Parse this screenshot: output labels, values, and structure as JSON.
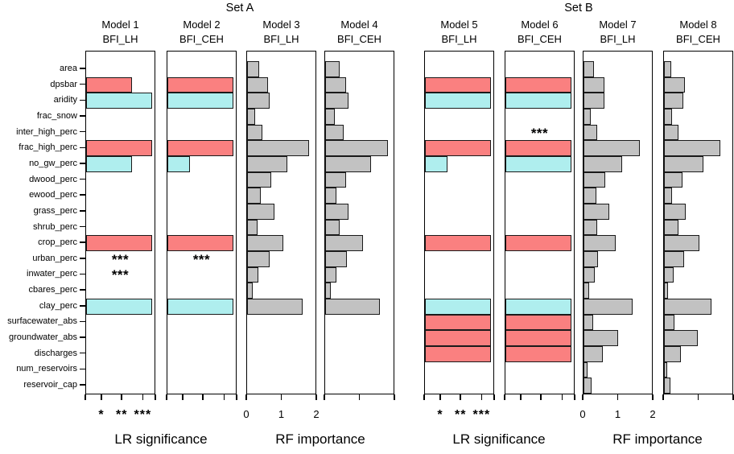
{
  "set_titles": {
    "a": "Set A",
    "b": "Set B"
  },
  "colors": {
    "red": "#FA8080",
    "cyan": "#AFEEEE",
    "gray": "#C2C2C2"
  },
  "chart_data": {
    "type": "bar",
    "orientation": "horizontal",
    "grid": false,
    "row_labels": [
      "area",
      "dpsbar",
      "aridity",
      "frac_snow",
      "inter_high_perc",
      "frac_high_perc",
      "no_gw_perc",
      "dwood_perc",
      "ewood_perc",
      "grass_perc",
      "shrub_perc",
      "crop_perc",
      "urban_perc",
      "inwater_perc",
      "cbares_perc",
      "clay_perc",
      "surfacewater_abs",
      "groundwater_abs",
      "discharges",
      "num_reservoirs",
      "reservoir_cap"
    ],
    "lr_axis": {
      "caption": "LR significance",
      "tick_labels": [
        "*",
        "**",
        "***"
      ]
    },
    "rf_axis": {
      "caption": "RF importance",
      "tick_labels": [
        "0",
        "1",
        "2"
      ],
      "range": [
        0,
        2
      ]
    },
    "panels": [
      {
        "model": "Model 1",
        "variant": "BFI_LH",
        "set": "A",
        "kind": "lr",
        "axis_labels": true,
        "bars": [
          {
            "row": "dpsbar",
            "frac": 0.68,
            "color": "red"
          },
          {
            "row": "aridity",
            "frac": 0.98,
            "color": "cyan"
          },
          {
            "row": "frac_high_perc",
            "frac": 0.98,
            "color": "red"
          },
          {
            "row": "no_gw_perc",
            "frac": 0.68,
            "color": "cyan"
          },
          {
            "row": "crop_perc",
            "frac": 0.98,
            "color": "red"
          },
          {
            "row": "clay_perc",
            "frac": 0.98,
            "color": "cyan"
          }
        ],
        "stars": [
          {
            "row": "urban_perc",
            "text": "***"
          },
          {
            "row": "inwater_perc",
            "text": "***"
          }
        ]
      },
      {
        "model": "Model 2",
        "variant": "BFI_CEH",
        "set": "A",
        "kind": "lr",
        "axis_labels": false,
        "bars": [
          {
            "row": "dpsbar",
            "frac": 0.98,
            "color": "red"
          },
          {
            "row": "aridity",
            "frac": 0.98,
            "color": "cyan"
          },
          {
            "row": "frac_high_perc",
            "frac": 0.98,
            "color": "red"
          },
          {
            "row": "no_gw_perc",
            "frac": 0.33,
            "color": "cyan"
          },
          {
            "row": "crop_perc",
            "frac": 0.98,
            "color": "red"
          },
          {
            "row": "clay_perc",
            "frac": 0.98,
            "color": "cyan"
          }
        ],
        "stars": [
          {
            "row": "urban_perc",
            "text": "***"
          }
        ]
      },
      {
        "model": "Model 3",
        "variant": "BFI_LH",
        "set": "A",
        "kind": "rf",
        "axis_labels": true,
        "values": [
          0.35,
          0.6,
          0.65,
          0.22,
          0.44,
          1.78,
          1.15,
          0.69,
          0.38,
          0.78,
          0.3,
          1.04,
          0.64,
          0.33,
          0.17,
          1.58,
          0,
          0,
          0,
          0,
          0
        ]
      },
      {
        "model": "Model 4",
        "variant": "BFI_CEH",
        "set": "A",
        "kind": "rf",
        "axis_labels": false,
        "values": [
          0.41,
          0.59,
          0.66,
          0.28,
          0.53,
          1.8,
          1.31,
          0.59,
          0.32,
          0.67,
          0.42,
          1.07,
          0.61,
          0.33,
          0.15,
          1.56,
          0,
          0,
          0,
          0,
          0
        ]
      },
      {
        "model": "Model 5",
        "variant": "BFI_LH",
        "set": "B",
        "kind": "lr",
        "axis_labels": true,
        "bars": [
          {
            "row": "dpsbar",
            "frac": 0.98,
            "color": "red"
          },
          {
            "row": "aridity",
            "frac": 0.98,
            "color": "cyan"
          },
          {
            "row": "frac_high_perc",
            "frac": 0.98,
            "color": "red"
          },
          {
            "row": "no_gw_perc",
            "frac": 0.33,
            "color": "cyan"
          },
          {
            "row": "crop_perc",
            "frac": 0.98,
            "color": "red"
          },
          {
            "row": "clay_perc",
            "frac": 0.98,
            "color": "cyan"
          },
          {
            "row": "surfacewater_abs",
            "frac": 0.98,
            "color": "red"
          },
          {
            "row": "groundwater_abs",
            "frac": 0.98,
            "color": "red"
          },
          {
            "row": "discharges",
            "frac": 0.98,
            "color": "red"
          }
        ],
        "stars": []
      },
      {
        "model": "Model 6",
        "variant": "BFI_CEH",
        "set": "B",
        "kind": "lr",
        "axis_labels": false,
        "bars": [
          {
            "row": "dpsbar",
            "frac": 0.98,
            "color": "red"
          },
          {
            "row": "aridity",
            "frac": 0.98,
            "color": "cyan"
          },
          {
            "row": "frac_high_perc",
            "frac": 0.98,
            "color": "red"
          },
          {
            "row": "no_gw_perc",
            "frac": 0.98,
            "color": "cyan"
          },
          {
            "row": "crop_perc",
            "frac": 0.98,
            "color": "red"
          },
          {
            "row": "clay_perc",
            "frac": 0.98,
            "color": "cyan"
          },
          {
            "row": "surfacewater_abs",
            "frac": 0.98,
            "color": "red"
          },
          {
            "row": "groundwater_abs",
            "frac": 0.98,
            "color": "red"
          },
          {
            "row": "discharges",
            "frac": 0.98,
            "color": "red"
          }
        ],
        "stars": [
          {
            "row": "inter_high_perc",
            "text": "***"
          }
        ]
      },
      {
        "model": "Model 7",
        "variant": "BFI_LH",
        "set": "B",
        "kind": "rf",
        "axis_labels": true,
        "values": [
          0.31,
          0.59,
          0.59,
          0.21,
          0.4,
          1.61,
          1.1,
          0.63,
          0.36,
          0.74,
          0.4,
          0.93,
          0.42,
          0.32,
          0.15,
          1.41,
          0.27,
          0.99,
          0.55,
          0.12,
          0.22
        ]
      },
      {
        "model": "Model 8",
        "variant": "BFI_CEH",
        "set": "B",
        "kind": "rf",
        "axis_labels": false,
        "values": [
          0.2,
          0.6,
          0.56,
          0.23,
          0.41,
          1.6,
          1.13,
          0.53,
          0.24,
          0.62,
          0.41,
          1.0,
          0.58,
          0.28,
          0.12,
          1.35,
          0.29,
          0.97,
          0.48,
          0.1,
          0.19
        ]
      }
    ]
  }
}
